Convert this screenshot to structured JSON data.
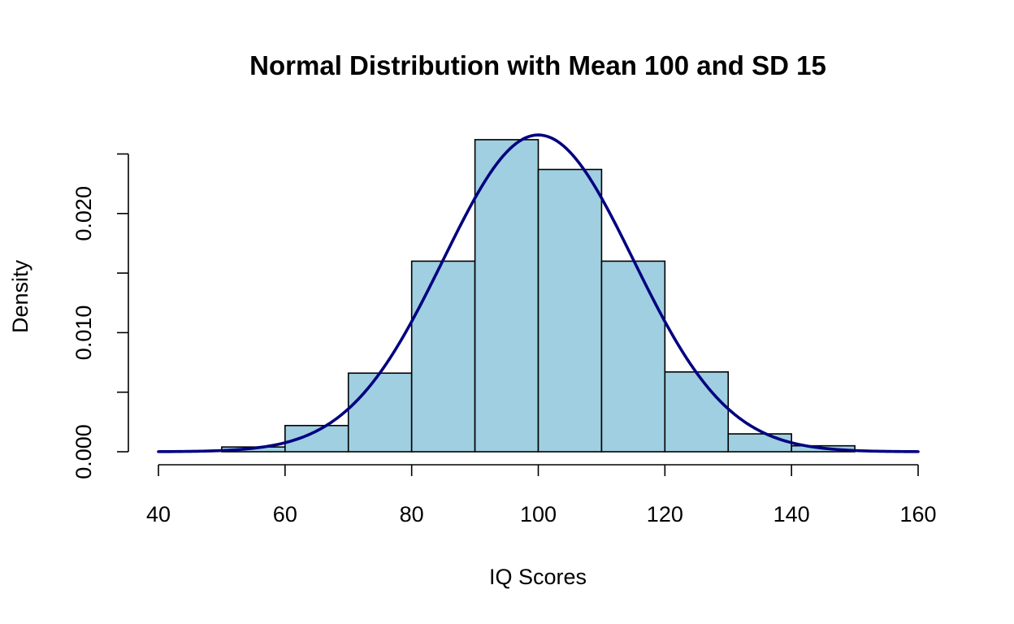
{
  "chart_data": {
    "type": "bar",
    "title": "Normal Distribution with Mean 100 and SD 15",
    "xlabel": "IQ Scores",
    "ylabel": "Density",
    "xlim": [
      40,
      160
    ],
    "ylim": [
      0,
      0.025
    ],
    "x_ticks": [
      "40",
      "60",
      "80",
      "100",
      "120",
      "140",
      "160"
    ],
    "y_ticks": [
      "0.000",
      "",
      "0.010",
      "",
      "0.020",
      ""
    ],
    "y_tick_values": [
      0,
      0.005,
      0.01,
      0.015,
      0.02,
      0.025
    ],
    "x_tick_values": [
      40,
      60,
      80,
      100,
      120,
      140,
      160
    ],
    "bins": [
      {
        "start": 50,
        "end": 60,
        "density": 0.0004
      },
      {
        "start": 60,
        "end": 70,
        "density": 0.0022
      },
      {
        "start": 70,
        "end": 80,
        "density": 0.0066
      },
      {
        "start": 80,
        "end": 90,
        "density": 0.016
      },
      {
        "start": 90,
        "end": 100,
        "density": 0.0262
      },
      {
        "start": 100,
        "end": 110,
        "density": 0.0237
      },
      {
        "start": 110,
        "end": 120,
        "density": 0.016
      },
      {
        "start": 120,
        "end": 130,
        "density": 0.0067
      },
      {
        "start": 130,
        "end": 140,
        "density": 0.0015
      },
      {
        "start": 140,
        "end": 150,
        "density": 0.0005
      }
    ],
    "curve": {
      "type": "normal",
      "mean": 100,
      "sd": 15,
      "x_range": [
        40,
        160
      ]
    },
    "grid": false,
    "colors": {
      "bar_fill": "#9fcfe1",
      "bar_border": "#000000",
      "curve": "#000080"
    }
  }
}
